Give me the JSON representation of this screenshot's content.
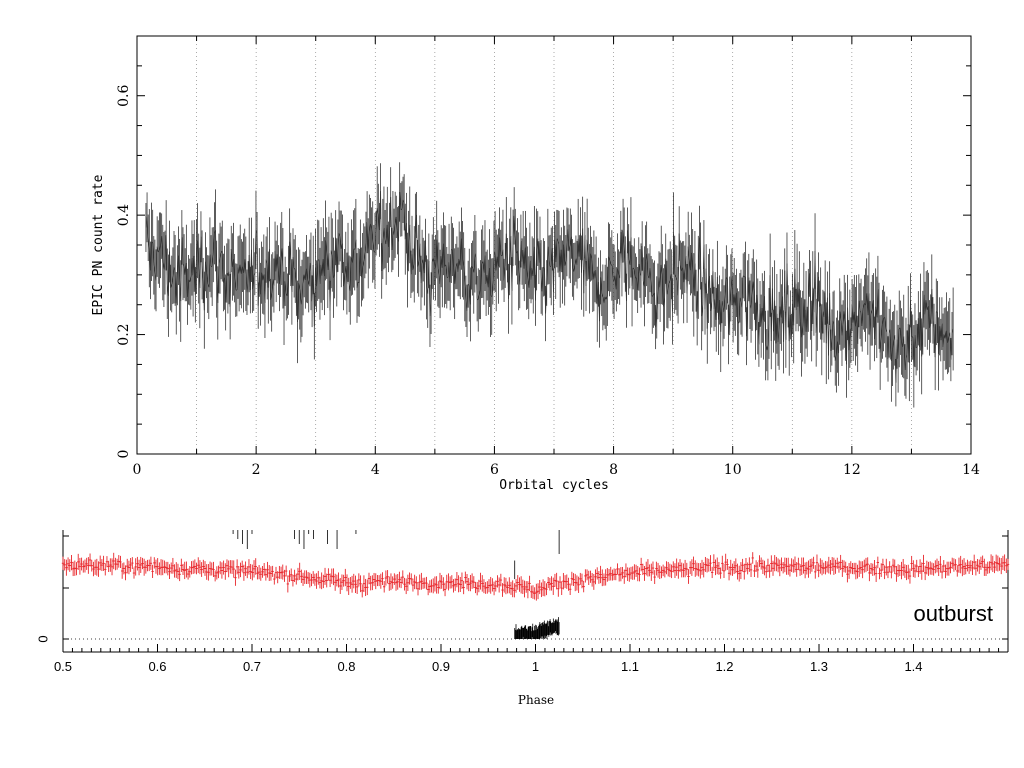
{
  "chart_data": [
    {
      "type": "line",
      "xlabel": "Orbital cycles",
      "ylabel": "EPIC PN count rate",
      "xlim": [
        0,
        14
      ],
      "ylim": [
        0,
        0.7
      ],
      "xticks": [
        "0",
        "2",
        "4",
        "6",
        "8",
        "10",
        "12",
        "14"
      ],
      "yticks": [
        "0",
        "0.2",
        "0.4",
        "0.6"
      ],
      "grid": "vertical dotted lines at each integer cycle",
      "series": [
        {
          "color": "#333333",
          "x_range": [
            0.15,
            13.7
          ],
          "trend": {
            "x": [
              0.15,
              1,
              2,
              3,
              4,
              4.5,
              5,
              6,
              7,
              8,
              9,
              10,
              11,
              12,
              13,
              13.7
            ],
            "y": [
              0.32,
              0.31,
              0.3,
              0.3,
              0.36,
              0.38,
              0.3,
              0.31,
              0.31,
              0.3,
              0.3,
              0.25,
              0.24,
              0.23,
              0.19,
              0.21
            ]
          },
          "note": "binned light curve with error bars, scatter about 0.08"
        }
      ]
    },
    {
      "type": "line",
      "xlabel": "Phase",
      "xlim": [
        0.5,
        1.5
      ],
      "xticks": [
        "0.5",
        "0.6",
        "0.7",
        "0.8",
        "0.9",
        "1",
        "1.1",
        "1.2",
        "1.3",
        "1.4"
      ],
      "yticks": [
        "0"
      ],
      "annotation": "outburst",
      "grid": "horizontal dotted line at zero",
      "series": [
        {
          "color": "#e8252a",
          "x_range": [
            0.5,
            1.5
          ],
          "profile": {
            "x": [
              0.5,
              0.6,
              0.7,
              0.8,
              0.9,
              0.97,
              1.0,
              1.03,
              1.1,
              1.2,
              1.3,
              1.4,
              1.5
            ],
            "y": [
              0.68,
              0.66,
              0.62,
              0.52,
              0.52,
              0.5,
              0.45,
              0.52,
              0.6,
              0.66,
              0.66,
              0.64,
              0.68
            ]
          },
          "note": "folded light curve with error bars"
        },
        {
          "color": "#000000",
          "x_range": [
            0.978,
            1.025
          ],
          "profile": {
            "x": [
              0.978,
              1.0,
              1.025
            ],
            "y": [
              0.03,
              0.05,
              0.12
            ]
          },
          "note": "eclipse segment near zero"
        }
      ]
    }
  ]
}
